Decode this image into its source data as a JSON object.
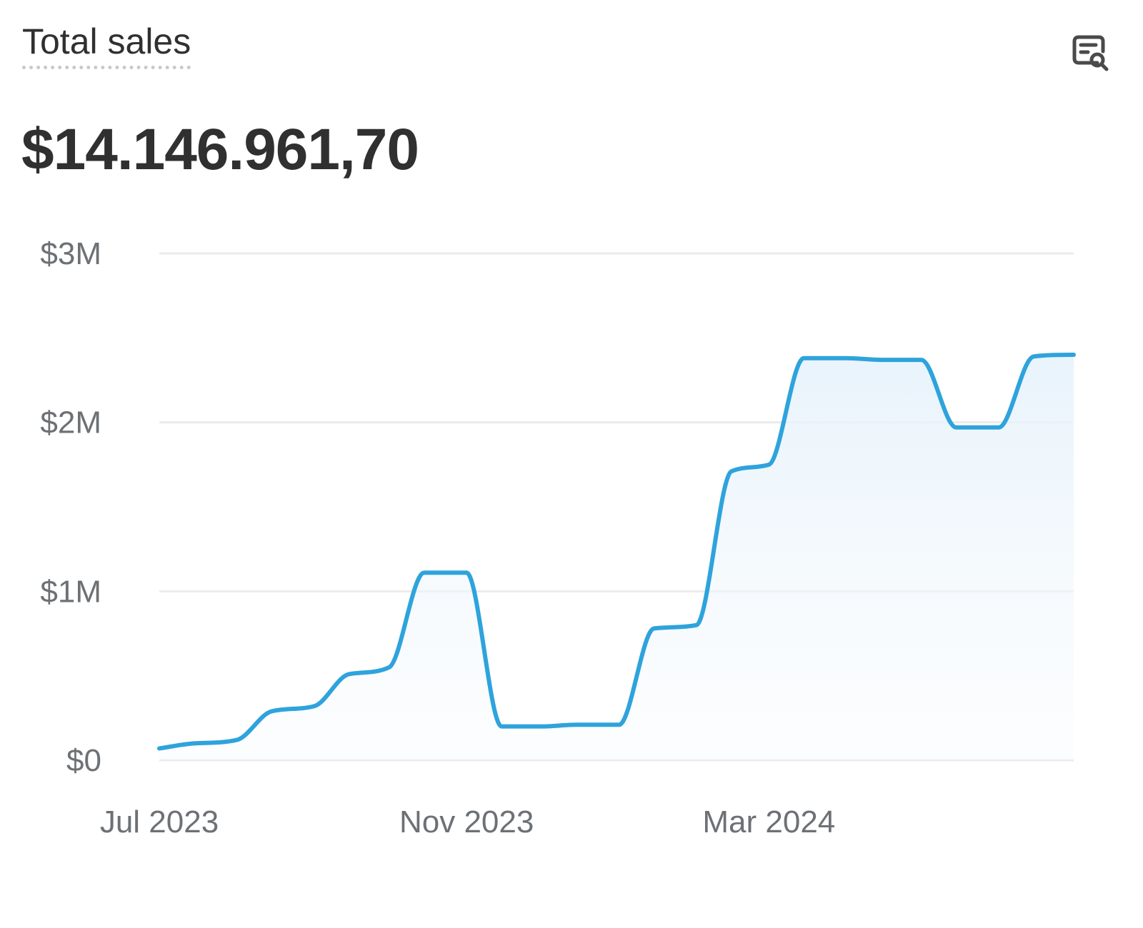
{
  "card": {
    "title": "Total sales",
    "total": "$14.146.961,70",
    "explore_icon": "report-search-icon"
  },
  "colors": {
    "line": "#2ea3dc",
    "fill": "#e8f3fb",
    "grid": "#ebebeb",
    "text": "#303030",
    "muted": "#6d7175"
  },
  "chart_data": {
    "type": "area",
    "smooth": true,
    "x": [
      "2023-07-01",
      "2023-07-15",
      "2023-08-01",
      "2023-08-15",
      "2023-09-01",
      "2023-09-15",
      "2023-10-01",
      "2023-10-15",
      "2023-11-01",
      "2023-11-15",
      "2023-12-01",
      "2023-12-15",
      "2024-01-01",
      "2024-01-15",
      "2024-02-01",
      "2024-02-15",
      "2024-03-01",
      "2024-03-15",
      "2024-04-01",
      "2024-04-15",
      "2024-05-01",
      "2024-05-15",
      "2024-06-01",
      "2024-06-15",
      "2024-07-01"
    ],
    "series": [
      {
        "values": [
          0.07,
          0.1,
          0.12,
          0.29,
          0.32,
          0.51,
          0.55,
          1.11,
          1.11,
          0.2,
          0.2,
          0.21,
          0.21,
          0.78,
          0.8,
          1.71,
          1.75,
          2.38,
          2.38,
          2.37,
          2.37,
          1.97,
          1.97,
          2.39,
          2.4
        ]
      }
    ],
    "y_unit": "$M",
    "ylim": [
      0,
      3
    ],
    "y_ticks": [
      {
        "value": 0,
        "label": "$0"
      },
      {
        "value": 1,
        "label": "$1M"
      },
      {
        "value": 2,
        "label": "$2M"
      },
      {
        "value": 3,
        "label": "$3M"
      }
    ],
    "x_ticks": [
      {
        "x": "2023-07-01",
        "label": "Jul 2023"
      },
      {
        "x": "2023-11-01",
        "label": "Nov 2023"
      },
      {
        "x": "2024-03-01",
        "label": "Mar 2024"
      }
    ],
    "grid": true,
    "title": "",
    "xlabel": "",
    "ylabel": ""
  }
}
